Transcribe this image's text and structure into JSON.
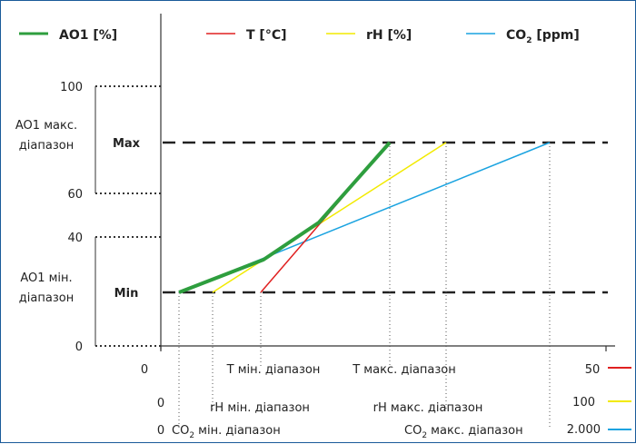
{
  "legend": {
    "ao1": "AO1 [%]",
    "t": "T [°C]",
    "rh": "rH [%]",
    "co2_main": "CO",
    "co2_sub": "2",
    "co2_unit": " [ppm]"
  },
  "y_axis": {
    "tick_0": "0",
    "tick_40": "40",
    "tick_60": "60",
    "tick_100": "100",
    "max_range_line1": "AO1 макс.",
    "max_range_line2": "діапазон",
    "min_range_line1": "AO1 мін.",
    "min_range_line2": "діапазон",
    "max_label": "Max",
    "min_label": "Min"
  },
  "x_axis": {
    "t_row": {
      "start": "0",
      "min": "T мін. діапазон",
      "max": "T макс. діапазон",
      "end": "50"
    },
    "rh_row": {
      "start": "0",
      "min": "rH мін. діапазон",
      "max": "rH макс. діапазон",
      "end": "100"
    },
    "co2_row": {
      "start": "0",
      "min_pre": "CO",
      "min_sub": "2",
      "min_post": " мін. діапазон",
      "max_pre": "CO",
      "max_sub": "2",
      "max_post": " макс. діапазон",
      "end": "2.000"
    },
    "axis_end": "50"
  },
  "colors": {
    "ao1": "#2e9e3e",
    "t": "#e02020",
    "rh": "#f2ea00",
    "co2": "#1aa3e0",
    "frame": "#1a5a99"
  }
}
